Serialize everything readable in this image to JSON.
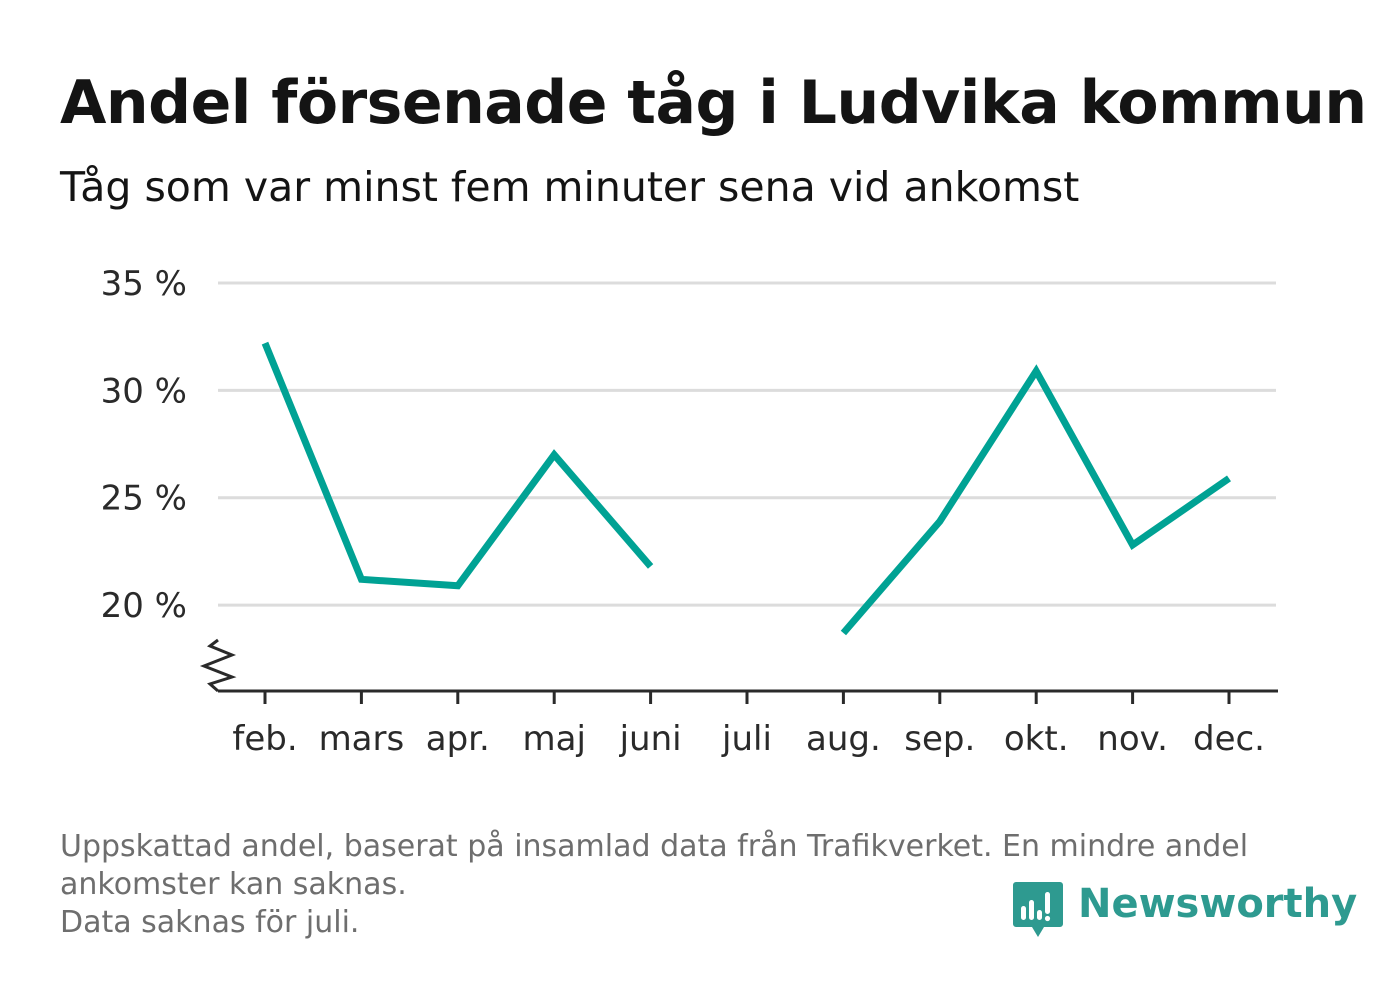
{
  "title": "Andel försenade tåg i Ludvika kommun",
  "subtitle": "Tåg som var minst fem minuter sena vid ankomst",
  "footnote": [
    "Uppskattad andel, baserat på insamlad data från Trafikverket. En mindre andel",
    "ankomster kan saknas.",
    "Data saknas för juli."
  ],
  "logo": {
    "text": "Newsworthy",
    "icon": "newsworthy-bar-chart-icon"
  },
  "colors": {
    "line": "#00a294",
    "grid": "#dcdcdc",
    "axis": "#2a2a2a",
    "logo": "#2e9a90"
  },
  "chart_data": {
    "type": "line",
    "categories": [
      "feb.",
      "mars",
      "apr.",
      "maj",
      "juni",
      "juli",
      "aug.",
      "sep.",
      "okt.",
      "nov.",
      "dec."
    ],
    "series": [
      {
        "values": [
          32.2,
          21.2,
          20.9,
          27.0,
          21.8,
          null,
          18.7,
          23.9,
          30.9,
          22.8,
          25.9
        ]
      }
    ],
    "yticks": [
      20,
      25,
      30,
      35
    ],
    "ytick_labels": [
      "20 %",
      "25 %",
      "30 %",
      "35 %"
    ],
    "ylim": [
      16,
      35
    ],
    "y_axis_break": true,
    "grid": true,
    "legend": "none"
  }
}
